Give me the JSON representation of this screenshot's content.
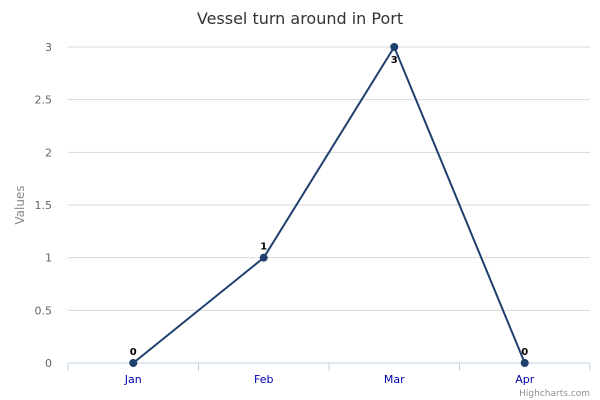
{
  "chart_data": {
    "type": "line",
    "title": "Vessel turn around in Port",
    "xlabel": "",
    "ylabel": "Values",
    "categories": [
      "Jan",
      "Feb",
      "Mar",
      "Apr"
    ],
    "series": [
      {
        "values": [
          0,
          1,
          3,
          0
        ]
      }
    ],
    "ylim": [
      0,
      3
    ],
    "yticks": [
      0,
      0.5,
      1,
      1.5,
      2,
      2.5,
      3
    ],
    "grid": true,
    "data_labels": true,
    "series_color": "#1f3f6e",
    "credits": "Highcharts.com"
  }
}
